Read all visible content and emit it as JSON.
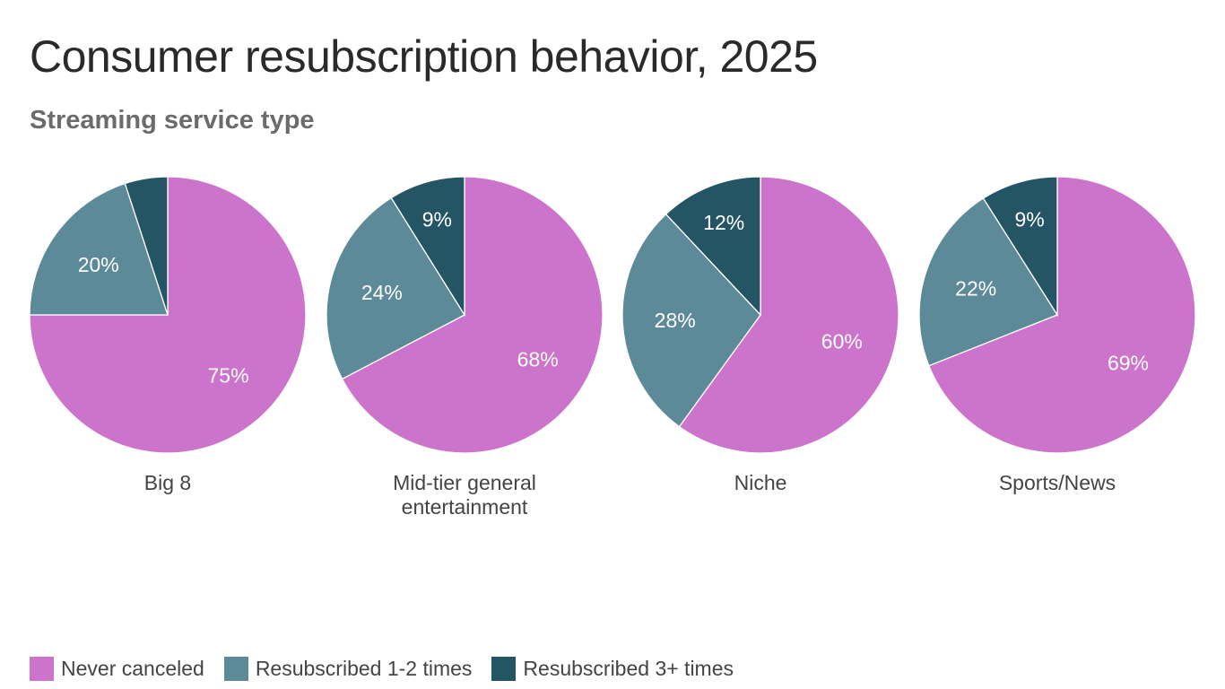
{
  "title": "Consumer resubscription behavior, 2025",
  "subtitle": "Streaming service type",
  "legend": [
    {
      "label": "Never canceled",
      "color": "#cc74cb"
    },
    {
      "label": "Resubscribed 1-2 times",
      "color": "#5d8a99"
    },
    {
      "label": "Resubscribed 3+ times",
      "color": "#235564"
    }
  ],
  "chart_data": {
    "type": "pie",
    "series_names": [
      "Never canceled",
      "Resubscribed 1-2 times",
      "Resubscribed 3+ times"
    ],
    "colors": [
      "#cc74cb",
      "#5d8a99",
      "#235564"
    ],
    "pies": [
      {
        "label": [
          "Big 8"
        ],
        "values": [
          75,
          20,
          5
        ],
        "value_labels": [
          "75%",
          "20%",
          ""
        ]
      },
      {
        "label": [
          "Mid-tier general",
          "entertainment"
        ],
        "values": [
          68,
          24,
          9
        ],
        "value_labels": [
          "68%",
          "24%",
          "9%"
        ]
      },
      {
        "label": [
          "Niche"
        ],
        "values": [
          60,
          28,
          12
        ],
        "value_labels": [
          "60%",
          "28%",
          "12%"
        ]
      },
      {
        "label": [
          "Sports/News"
        ],
        "values": [
          69,
          22,
          9
        ],
        "value_labels": [
          "69%",
          "22%",
          "9%"
        ]
      }
    ]
  }
}
